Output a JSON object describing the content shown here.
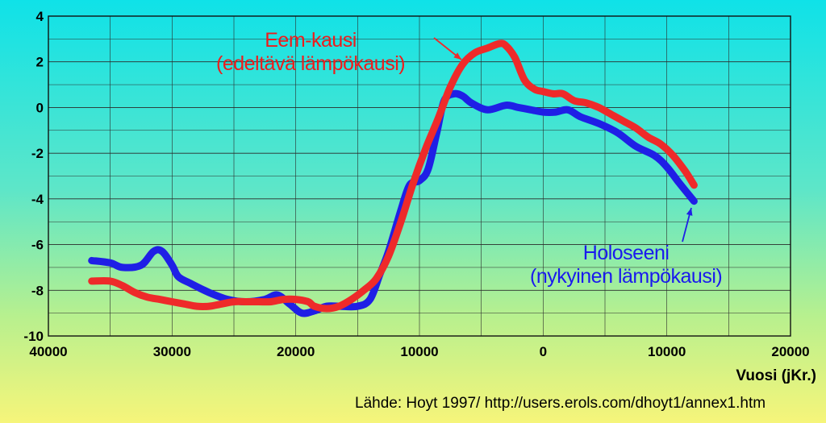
{
  "chart_data": {
    "type": "line",
    "xlabel": "Vuosi (jKr.)",
    "ylabel": "",
    "xlim": [
      -40000,
      20000
    ],
    "ylim": [
      -10,
      4
    ],
    "x_ticks": [
      -40000,
      -30000,
      -20000,
      -10000,
      0,
      10000,
      20000
    ],
    "x_tick_labels": [
      "40000",
      "30000",
      "20000",
      "10000",
      "0",
      "10000",
      "20000"
    ],
    "y_ticks": [
      4,
      2,
      0,
      -2,
      -4,
      -6,
      -8,
      -10
    ],
    "y_tick_labels": [
      "4",
      "2",
      "0",
      "-2",
      "-4",
      "-6",
      "-8",
      "-10"
    ],
    "grid": true,
    "series": [
      {
        "name": "Holoseeni (nykyinen lämpökausi)",
        "color": "#1f1fe6",
        "x": [
          -36500,
          -35000,
          -34000,
          -32500,
          -31500,
          -30800,
          -30000,
          -29500,
          -28500,
          -27000,
          -25500,
          -24000,
          -22500,
          -21500,
          -20500,
          -19500,
          -18500,
          -17500,
          -16500,
          -15000,
          -14000,
          -13200,
          -12500,
          -11500,
          -10800,
          -10000,
          -9300,
          -8600,
          -8000,
          -7200,
          -6500,
          -5800,
          -4500,
          -3000,
          -2000,
          -1000,
          0,
          1000,
          2000,
          3000,
          4500,
          6000,
          7500,
          9000,
          10000,
          11000,
          12200
        ],
        "y": [
          -6.7,
          -6.8,
          -7.0,
          -6.9,
          -6.3,
          -6.3,
          -6.9,
          -7.4,
          -7.7,
          -8.1,
          -8.4,
          -8.5,
          -8.4,
          -8.2,
          -8.6,
          -9.0,
          -8.9,
          -8.7,
          -8.7,
          -8.7,
          -8.4,
          -7.3,
          -6.3,
          -4.5,
          -3.4,
          -3.2,
          -2.7,
          -1.1,
          0.3,
          0.6,
          0.5,
          0.2,
          -0.1,
          0.1,
          0.0,
          -0.1,
          -0.2,
          -0.2,
          -0.1,
          -0.4,
          -0.7,
          -1.1,
          -1.7,
          -2.1,
          -2.6,
          -3.3,
          -4.1
        ]
      },
      {
        "name": "Eem-kausi (edeltävä lämpökausi)",
        "color": "#ee2a2a",
        "x": [
          -36500,
          -35000,
          -34000,
          -33000,
          -32000,
          -31000,
          -30000,
          -29000,
          -28000,
          -27000,
          -26000,
          -25000,
          -24000,
          -23000,
          -22000,
          -21000,
          -20000,
          -19000,
          -18500,
          -17500,
          -16500,
          -15500,
          -14500,
          -13500,
          -12500,
          -11500,
          -10500,
          -9500,
          -8500,
          -7500,
          -6500,
          -5500,
          -4500,
          -3500,
          -3000,
          -2300,
          -1500,
          -700,
          0,
          800,
          1600,
          2500,
          3500,
          4500,
          5500,
          6500,
          7500,
          8500,
          9500,
          10500,
          11500,
          12200
        ],
        "y": [
          -7.6,
          -7.6,
          -7.8,
          -8.1,
          -8.3,
          -8.4,
          -8.5,
          -8.6,
          -8.7,
          -8.7,
          -8.6,
          -8.5,
          -8.5,
          -8.5,
          -8.5,
          -8.4,
          -8.4,
          -8.5,
          -8.7,
          -8.8,
          -8.7,
          -8.4,
          -8.0,
          -7.5,
          -6.5,
          -5.0,
          -3.3,
          -1.8,
          -0.5,
          0.9,
          1.9,
          2.4,
          2.6,
          2.8,
          2.7,
          2.2,
          1.2,
          0.8,
          0.7,
          0.6,
          0.6,
          0.3,
          0.2,
          0.0,
          -0.3,
          -0.6,
          -0.9,
          -1.3,
          -1.6,
          -2.1,
          -2.8,
          -3.4
        ]
      }
    ],
    "annotations": {
      "red_line1": "Eem-kausi",
      "red_line2": "(edeltävä lämpökausi)",
      "blue_line1": "Holoseeni",
      "blue_line2": "(nykyinen lämpökausi)"
    },
    "source": "Lähde: Hoyt 1997/ http://users.erols.com/dhoyt1/annex1.htm"
  }
}
